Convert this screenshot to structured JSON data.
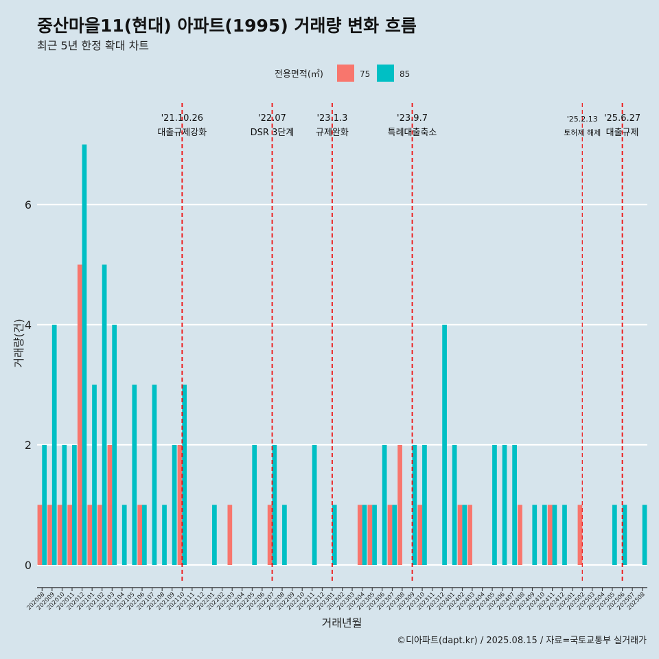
{
  "title": "중산마을11(현대) 아파트(1995) 거래량 변화 흐름",
  "subtitle": "최근 5년 한정 확대 차트",
  "caption": "©디아파트(dapt.kr) / 2025.08.15 / 자료=국토교통부 실거래가",
  "colors": {
    "background": "#d6e4ec",
    "s75": "#f8766d",
    "s85": "#00bfc4",
    "event_line": "#ee1111",
    "grid": "#ffffff"
  },
  "chart_data": {
    "type": "bar",
    "xlabel": "거래년월",
    "ylabel": "거래량(건)",
    "ylim": [
      -0.35,
      7.3
    ],
    "yticks": [
      0,
      2,
      4,
      6
    ],
    "legend": {
      "title": "전용면적(㎡)",
      "position": "top"
    },
    "grid": true,
    "categories": [
      "202008",
      "202009",
      "202010",
      "202011",
      "202012",
      "202101",
      "202102",
      "202103",
      "202104",
      "202105",
      "202106",
      "202107",
      "202108",
      "202109",
      "202110",
      "202111",
      "202112",
      "202201",
      "202202",
      "202203",
      "202204",
      "202205",
      "202206",
      "202207",
      "202208",
      "202209",
      "202210",
      "202211",
      "202212",
      "202301",
      "202302",
      "202303",
      "202304",
      "202305",
      "202306",
      "202307",
      "202308",
      "202309",
      "202310",
      "202311",
      "202312",
      "202401",
      "202402",
      "202403",
      "202404",
      "202405",
      "202406",
      "202407",
      "202408",
      "202409",
      "202410",
      "202411",
      "202412",
      "202501",
      "202502",
      "202503",
      "202504",
      "202505",
      "202506",
      "202507",
      "202508"
    ],
    "series": [
      {
        "name": "75",
        "color": "#f8766d",
        "values": [
          1,
          1,
          1,
          1,
          5,
          1,
          1,
          2,
          0,
          0,
          1,
          0,
          0,
          0,
          2,
          0,
          0,
          0,
          0,
          1,
          0,
          0,
          0,
          1,
          0,
          0,
          0,
          0,
          0,
          0,
          0,
          0,
          1,
          1,
          0,
          1,
          2,
          0,
          1,
          0,
          0,
          0,
          1,
          1,
          0,
          0,
          0,
          0,
          1,
          0,
          0,
          1,
          0,
          0,
          1,
          0,
          0,
          0,
          0,
          0,
          0
        ]
      },
      {
        "name": "85",
        "color": "#00bfc4",
        "values": [
          2,
          4,
          2,
          2,
          7,
          3,
          5,
          4,
          1,
          3,
          1,
          3,
          1,
          2,
          3,
          0,
          0,
          1,
          0,
          0,
          0,
          2,
          0,
          2,
          1,
          0,
          0,
          2,
          0,
          1,
          0,
          0,
          1,
          1,
          2,
          1,
          0,
          2,
          2,
          0,
          4,
          2,
          1,
          0,
          0,
          2,
          2,
          2,
          0,
          1,
          1,
          1,
          1,
          0,
          0,
          0,
          0,
          1,
          1,
          0,
          1
        ]
      }
    ],
    "events": [
      {
        "date": "'21.10.26",
        "label": "대출규제강화",
        "x": 14
      },
      {
        "date": "'22.07",
        "label": "DSR 3단계",
        "x": 23
      },
      {
        "date": "'23.1.3",
        "label": "규제완화",
        "x": 29
      },
      {
        "date": "'23.9.7",
        "label": "특례대출축소",
        "x": 37
      },
      {
        "date": "'25.2.13",
        "label": "토허제 해제",
        "x": 54
      },
      {
        "date": "'25.6.27",
        "label": "대출규제",
        "x": 58
      }
    ]
  }
}
